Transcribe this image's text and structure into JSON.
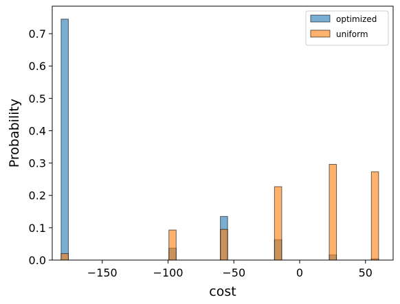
{
  "chart_data": {
    "type": "bar",
    "xlabel": "cost",
    "ylabel": "Probability",
    "xlim": [
      -188,
      71
    ],
    "ylim": [
      0,
      0.785
    ],
    "xticks": [
      -150,
      -100,
      -50,
      0,
      50
    ],
    "xtick_labels": [
      "−150",
      "−100",
      "−50",
      "0",
      "50"
    ],
    "yticks": [
      0.0,
      0.1,
      0.2,
      0.3,
      0.4,
      0.5,
      0.6,
      0.7
    ],
    "ytick_labels": [
      "0.0",
      "0.1",
      "0.2",
      "0.3",
      "0.4",
      "0.5",
      "0.6",
      "0.7"
    ],
    "bin_width": 5.5,
    "grid": false,
    "legend_position": "top-right",
    "series": [
      {
        "name": "optimized",
        "color": "#1f77b4",
        "bars": [
          {
            "x": -178.5,
            "value": 0.745
          },
          {
            "x": -96.6,
            "value": 0.037
          },
          {
            "x": -57.5,
            "value": 0.135
          },
          {
            "x": -16.4,
            "value": 0.063
          },
          {
            "x": 25.2,
            "value": 0.016
          },
          {
            "x": 57.2,
            "value": 0.004
          }
        ]
      },
      {
        "name": "uniform",
        "color": "#ff7f0e",
        "bars": [
          {
            "x": -178.5,
            "value": 0.02
          },
          {
            "x": -96.6,
            "value": 0.093
          },
          {
            "x": -57.5,
            "value": 0.095
          },
          {
            "x": -16.4,
            "value": 0.227
          },
          {
            "x": 25.2,
            "value": 0.296
          },
          {
            "x": 57.2,
            "value": 0.273
          }
        ]
      }
    ]
  }
}
